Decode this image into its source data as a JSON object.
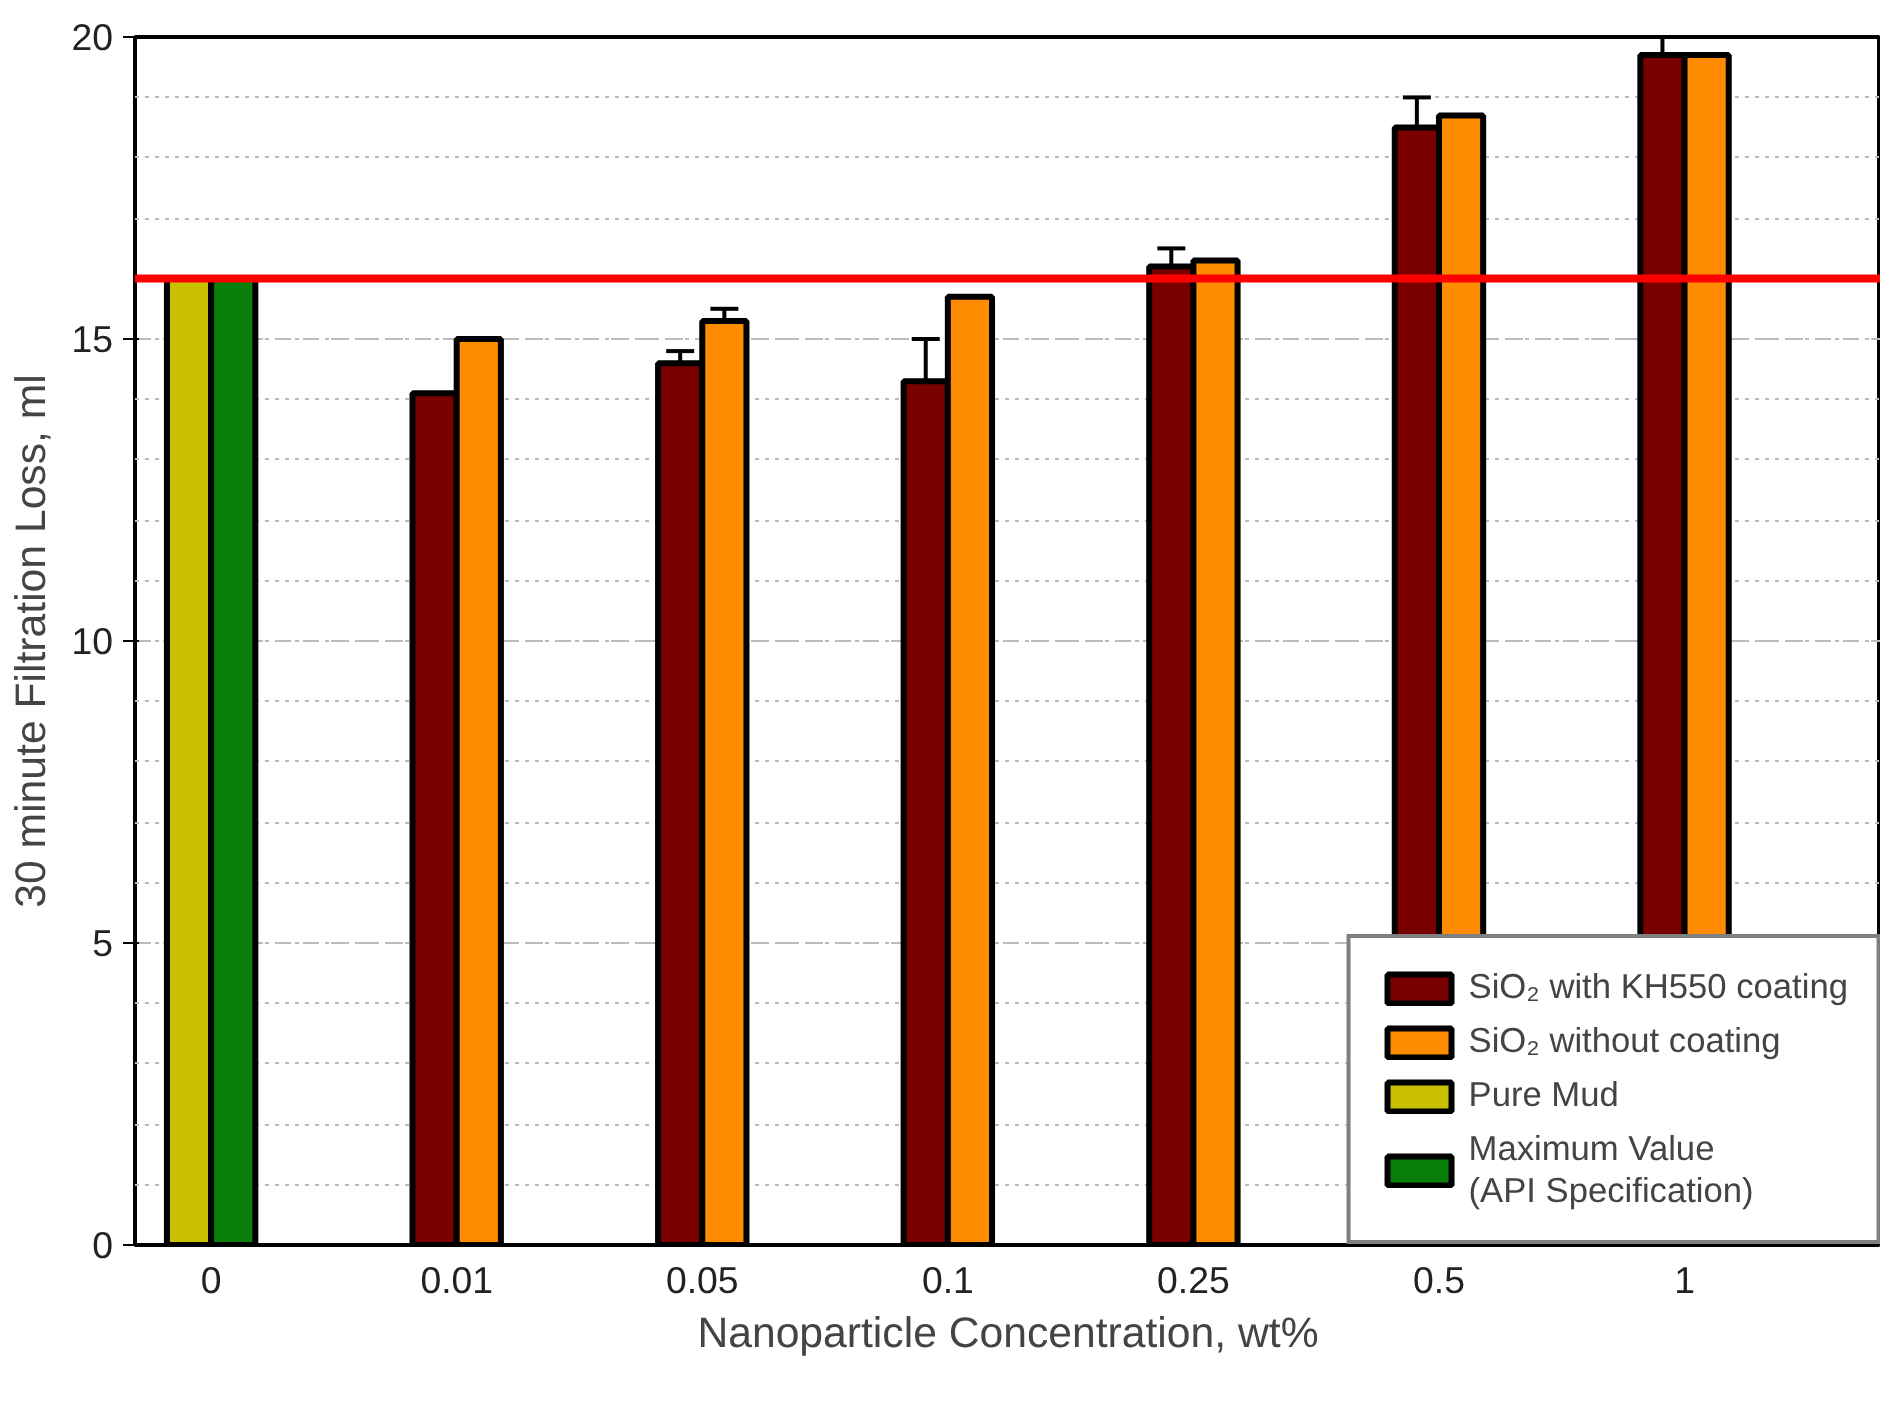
{
  "chart_data": {
    "type": "bar",
    "xlabel": "Nanoparticle Concentration, wt%",
    "ylabel": "30 minute Filtration Loss, ml",
    "categories": [
      "0",
      "0.01",
      "0.05",
      "0.1",
      "0.25",
      "0.5",
      "1"
    ],
    "series": [
      {
        "name": "SiO₂ with KH550 coating",
        "color": "#7a0000",
        "values": [
          null,
          14.1,
          14.6,
          14.3,
          16.2,
          18.5,
          19.7
        ],
        "errors": [
          null,
          null,
          0.2,
          0.7,
          0.3,
          0.5,
          0.3
        ]
      },
      {
        "name": "SiO₂ without coating",
        "color": "#ff8c00",
        "values": [
          null,
          15.0,
          15.3,
          15.7,
          16.3,
          18.7,
          19.7
        ],
        "errors": [
          null,
          null,
          0.2,
          null,
          null,
          null,
          null
        ]
      },
      {
        "name": "Pure Mud",
        "color": "#c8c000",
        "values": [
          16,
          null,
          null,
          null,
          null,
          null,
          null
        ]
      },
      {
        "name": "Maximum Value\n(API Specification)",
        "color": "#0a800a",
        "values": [
          16,
          null,
          null,
          null,
          null,
          null,
          null
        ]
      }
    ],
    "ylim": [
      0,
      20
    ],
    "yticks": [
      0,
      5,
      10,
      15,
      20
    ],
    "ref_lines": [
      {
        "axis": "y",
        "value": 16,
        "color": "#ff0000"
      }
    ],
    "grid": "y",
    "legend": "bottom right"
  }
}
